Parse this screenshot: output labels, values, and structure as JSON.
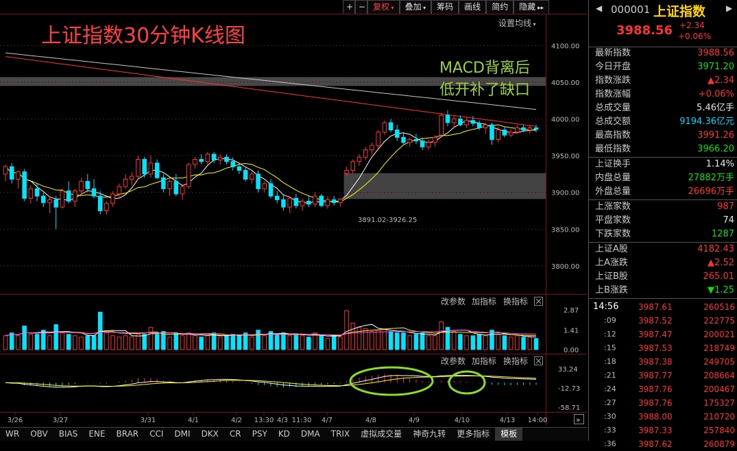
{
  "toolbar": {
    "plus": "+",
    "minus": "−",
    "fuquan": "复权",
    "diejia": "叠加",
    "chouma": "筹码",
    "huaxian": "画线",
    "jianyue": "简约",
    "yincang": "隐藏"
  },
  "chart_title": "上证指数30分钟K线图",
  "settings_label": "设置均线",
  "annotation": [
    "MACD背离后",
    "低开补了缺口"
  ],
  "gap_label": "3891.02-3926.25",
  "panel_buttons": {
    "params": "改参数",
    "add": "加指标",
    "switch": "换指标"
  },
  "colors": {
    "up": "#ff3232",
    "down": "#00e5ff",
    "ma5": "#ffffff",
    "ma10": "#ffff00",
    "ma60": "#ff3030",
    "ma120": "#c8c8c8",
    "ellipse": "#8cdc2a",
    "annotation": "#9ad43c",
    "title": "#ff4040"
  },
  "chart_data": {
    "type": "candlestick",
    "price_axis": [
      4100,
      4050,
      4000,
      3950,
      3900,
      3850,
      3800
    ],
    "price_axis_labels": [
      "4100.00",
      "4050.00",
      "4000.00",
      "3950.00",
      "3900.00",
      "3850.00",
      "3800.00"
    ],
    "price_range": [
      3770,
      4120
    ],
    "volume_axis_labels": [
      "2.87",
      "1.41",
      "0.00"
    ],
    "volume_range": [
      0,
      2.87
    ],
    "macd_axis_labels": [
      "33.24",
      "-12.73",
      "-58.71"
    ],
    "macd_range": [
      -58.71,
      33.24
    ],
    "x_labels": [
      "3/26",
      "3/27",
      "3/31",
      "4/1",
      "4/2",
      "13:30",
      "4/3",
      "11:30",
      "4/7",
      "4/8",
      "4/9",
      "4/10",
      "4/13",
      "14:00"
    ],
    "gap_zone": [
      3891.02,
      3926.25
    ],
    "resistance_zone": [
      4045,
      4057
    ],
    "candles": [
      [
        3925,
        3938,
        3915,
        3935,
        1.0
      ],
      [
        3935,
        3940,
        3912,
        3918,
        1.2
      ],
      [
        3918,
        3930,
        3905,
        3928,
        1.0
      ],
      [
        3928,
        3932,
        3888,
        3892,
        1.7
      ],
      [
        3892,
        3910,
        3885,
        3905,
        1.1
      ],
      [
        3905,
        3912,
        3888,
        3895,
        1.1
      ],
      [
        3895,
        3900,
        3880,
        3886,
        1.4
      ],
      [
        3886,
        3895,
        3872,
        3890,
        1.0
      ],
      [
        3890,
        3895,
        3850,
        3880,
        1.8
      ],
      [
        3880,
        3905,
        3878,
        3902,
        1.2
      ],
      [
        3902,
        3915,
        3885,
        3888,
        1.1
      ],
      [
        3888,
        3905,
        3880,
        3902,
        1.0
      ],
      [
        3902,
        3920,
        3895,
        3915,
        0.9
      ],
      [
        3915,
        3925,
        3900,
        3905,
        1.0
      ],
      [
        3905,
        3918,
        3892,
        3895,
        1.0
      ],
      [
        3895,
        3902,
        3870,
        3875,
        2.7
      ],
      [
        3875,
        3888,
        3870,
        3885,
        1.2
      ],
      [
        3885,
        3902,
        3880,
        3898,
        1.0
      ],
      [
        3898,
        3912,
        3892,
        3908,
        0.9
      ],
      [
        3908,
        3925,
        3905,
        3918,
        1.0
      ],
      [
        3918,
        3928,
        3910,
        3922,
        0.9
      ],
      [
        3922,
        3950,
        3918,
        3945,
        1.1
      ],
      [
        3945,
        3948,
        3920,
        3925,
        1.1
      ],
      [
        3925,
        3950,
        3920,
        3940,
        1.6
      ],
      [
        3940,
        3945,
        3918,
        3920,
        1.1
      ],
      [
        3920,
        3925,
        3900,
        3905,
        1.3
      ],
      [
        3905,
        3918,
        3895,
        3915,
        0.9
      ],
      [
        3915,
        3925,
        3895,
        3898,
        1.2
      ],
      [
        3898,
        3912,
        3890,
        3908,
        1.0
      ],
      [
        3908,
        3940,
        3905,
        3938,
        1.2
      ],
      [
        3938,
        3948,
        3932,
        3945,
        1.0
      ],
      [
        3945,
        3952,
        3938,
        3942,
        0.9
      ],
      [
        3942,
        3955,
        3938,
        3952,
        1.0
      ],
      [
        3952,
        3955,
        3940,
        3944,
        1.2
      ],
      [
        3944,
        3952,
        3938,
        3948,
        0.9
      ],
      [
        3948,
        3952,
        3938,
        3942,
        1.0
      ],
      [
        3942,
        3948,
        3930,
        3935,
        1.1
      ],
      [
        3935,
        3940,
        3925,
        3930,
        1.0
      ],
      [
        3930,
        3935,
        3915,
        3918,
        1.2
      ],
      [
        3918,
        3928,
        3912,
        3925,
        0.9
      ],
      [
        3925,
        3930,
        3900,
        3905,
        1.4
      ],
      [
        3905,
        3915,
        3900,
        3912,
        1.0
      ],
      [
        3912,
        3918,
        3892,
        3895,
        1.3
      ],
      [
        3895,
        3902,
        3885,
        3890,
        1.1
      ],
      [
        3890,
        3898,
        3875,
        3880,
        1.2
      ],
      [
        3880,
        3895,
        3872,
        3892,
        1.0
      ],
      [
        3892,
        3898,
        3878,
        3882,
        1.1
      ],
      [
        3882,
        3892,
        3875,
        3888,
        1.0
      ],
      [
        3888,
        3895,
        3880,
        3884,
        0.9
      ],
      [
        3884,
        3900,
        3880,
        3895,
        1.2
      ],
      [
        3895,
        3898,
        3880,
        3882,
        1.0
      ],
      [
        3882,
        3895,
        3878,
        3890,
        0.8
      ],
      [
        3890,
        3895,
        3882,
        3886,
        1.0
      ],
      [
        3886,
        3892,
        3880,
        3891,
        0.9
      ],
      [
        3926,
        3935,
        3922,
        3930,
        2.8
      ],
      [
        3930,
        3945,
        3926,
        3942,
        1.9
      ],
      [
        3942,
        3952,
        3936,
        3948,
        1.6
      ],
      [
        3948,
        3962,
        3944,
        3958,
        1.5
      ],
      [
        3958,
        3968,
        3952,
        3964,
        1.3
      ],
      [
        3964,
        3985,
        3960,
        3982,
        1.4
      ],
      [
        3982,
        3998,
        3978,
        3995,
        1.5
      ],
      [
        3995,
        4000,
        3982,
        3985,
        1.3
      ],
      [
        3985,
        3992,
        3970,
        3975,
        1.2
      ],
      [
        3975,
        3982,
        3966,
        3968,
        1.2
      ],
      [
        3968,
        3975,
        3962,
        3972,
        1.0
      ],
      [
        3972,
        3980,
        3966,
        3970,
        1.1
      ],
      [
        3970,
        3975,
        3958,
        3962,
        1.2
      ],
      [
        3962,
        3972,
        3958,
        3968,
        1.0
      ],
      [
        3968,
        3978,
        3962,
        3975,
        1.0
      ],
      [
        3978,
        4008,
        3975,
        4005,
        2.0
      ],
      [
        4005,
        4012,
        3990,
        3995,
        1.6
      ],
      [
        3995,
        4005,
        3988,
        4000,
        1.3
      ],
      [
        4000,
        4005,
        3990,
        3992,
        1.1
      ],
      [
        3992,
        4002,
        3988,
        3998,
        1.0
      ],
      [
        3998,
        4004,
        3990,
        3994,
        1.0
      ],
      [
        3994,
        3998,
        3985,
        3988,
        1.1
      ],
      [
        3988,
        3995,
        3980,
        3992,
        1.0
      ],
      [
        3992,
        3995,
        3965,
        3972,
        1.4
      ],
      [
        3972,
        3990,
        3968,
        3985,
        1.1
      ],
      [
        3985,
        3990,
        3975,
        3978,
        1.0
      ],
      [
        3978,
        3986,
        3975,
        3982,
        0.9
      ],
      [
        3982,
        3992,
        3980,
        3988,
        1.0
      ],
      [
        3988,
        3992,
        3982,
        3985,
        0.9
      ],
      [
        3985,
        3992,
        3980,
        3988,
        0.9
      ],
      [
        3988,
        3992,
        3982,
        3986,
        0.8
      ]
    ]
  },
  "right_panel": {
    "code": "000001",
    "name": "上证指数",
    "price": "3988.56",
    "change": "+2.34",
    "change_pct": "+0.06%",
    "stats": [
      {
        "label": "最新指数",
        "value": "3988.56",
        "color": "up"
      },
      {
        "label": "今日开盘",
        "value": "3971.20",
        "color": "dn"
      },
      {
        "label": "指数涨跌",
        "value": "▲2.34",
        "color": "up"
      },
      {
        "label": "指数涨幅",
        "value": "+0.06%",
        "color": "up"
      },
      {
        "label": "总成交量",
        "value": "5.46亿手",
        "color": "wh"
      },
      {
        "label": "总成交额",
        "value": "9194.36亿元",
        "color": "cy"
      },
      {
        "label": "最高指数",
        "value": "3991.26",
        "color": "up"
      },
      {
        "label": "最低指数",
        "value": "3966.20",
        "color": "dn"
      }
    ],
    "stats2": [
      {
        "label": "上证换手",
        "value": "1.14%",
        "color": "wh"
      },
      {
        "label": "内盘总量",
        "value": "27882万手",
        "color": "dn"
      },
      {
        "label": "外盘总量",
        "value": "26696万手",
        "color": "up"
      }
    ],
    "stats3": [
      {
        "label": "上涨家数",
        "value": "987",
        "color": "up"
      },
      {
        "label": "平盘家数",
        "value": "74",
        "color": "wh"
      },
      {
        "label": "下跌家数",
        "value": "1287",
        "color": "dn"
      }
    ],
    "stats4": [
      {
        "label": "上证A股",
        "value": "4182.43",
        "color": "up"
      },
      {
        "label": "上A涨跌",
        "value": "▲2.52",
        "color": "up"
      },
      {
        "label": "上证B股",
        "value": "265.01",
        "color": "up"
      },
      {
        "label": "上B涨跌",
        "value": "▼1.25",
        "color": "dn"
      }
    ],
    "ticks": [
      {
        "time": "14:56",
        "price": "3987.61",
        "vol": "260516"
      },
      {
        "time": ":09",
        "price": "3987.52",
        "vol": "222775"
      },
      {
        "time": ":12",
        "price": "3987.47",
        "vol": "200021"
      },
      {
        "time": ":15",
        "price": "3987.53",
        "vol": "218749"
      },
      {
        "time": ":18",
        "price": "3987.38",
        "vol": "249705"
      },
      {
        "time": ":21",
        "price": "3987.77",
        "vol": "208664"
      },
      {
        "time": ":24",
        "price": "3987.76",
        "vol": "200467"
      },
      {
        "time": ":27",
        "price": "3987.76",
        "vol": "175327"
      },
      {
        "time": ":30",
        "price": "3988.00",
        "vol": "210720"
      },
      {
        "time": ":33",
        "price": "3987.33",
        "vol": "257840"
      },
      {
        "time": ":36",
        "price": "3987.62",
        "vol": "260879"
      }
    ]
  },
  "bottom_tabs": [
    "WR",
    "OBV",
    "BIAS",
    "ENE",
    "BRAR",
    "CCI",
    "DMI",
    "DKX",
    "CR",
    "PSY",
    "KD",
    "DMA",
    "TRIX",
    "虚拟成交量",
    "神奇九转",
    "更多指标",
    "模板"
  ]
}
